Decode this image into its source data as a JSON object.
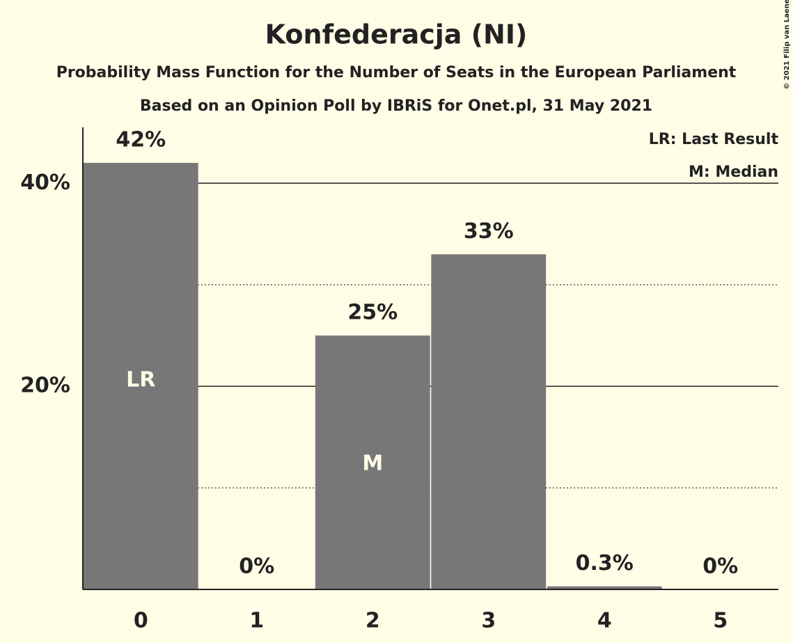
{
  "chart_data": {
    "type": "bar",
    "title": "Konfederacja (NI)",
    "subtitle": "Probability Mass Function for the Number of Seats in the European Parliament",
    "subtitle2": "Based on an Opinion Poll by IBRiS for Onet.pl, 31 May 2021",
    "copyright": "© 2021 Filip van Laenen",
    "categories": [
      "0",
      "1",
      "2",
      "3",
      "4",
      "5"
    ],
    "values": [
      42,
      0,
      25,
      33,
      0.3,
      0
    ],
    "value_labels": [
      "42%",
      "0%",
      "25%",
      "33%",
      "0.3%",
      "0%"
    ],
    "bar_annotations": [
      "LR",
      null,
      "M",
      null,
      null,
      null
    ],
    "legend": [
      "LR: Last Result",
      "M: Median"
    ],
    "color": "#777777",
    "ylim": [
      0,
      45.5
    ],
    "yticks": [
      {
        "value": 20,
        "label": "20%"
      },
      {
        "value": 40,
        "label": "40%"
      }
    ],
    "minor_yticks": [
      10,
      30
    ],
    "grid": true
  }
}
